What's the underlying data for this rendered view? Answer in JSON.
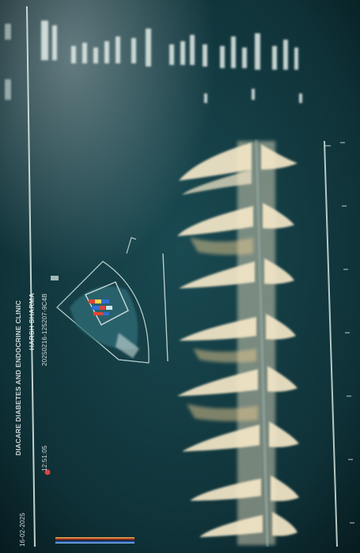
{
  "overlay": {
    "clinic": "DIACARE DIABETES AND ENDOCRINE CLINIC",
    "patient": "HARSH SHARMA",
    "patient_id": "20250216-125207-9C4B",
    "date": "16-02-2025",
    "time": "12:51:05"
  },
  "colors": {
    "screen_background": "#0d2d33",
    "doppler_signal": "#f4e7c8",
    "baseline": "#2a5a66",
    "color_flow_red": "#d8463a",
    "color_flow_blue": "#2e6fd8"
  }
}
